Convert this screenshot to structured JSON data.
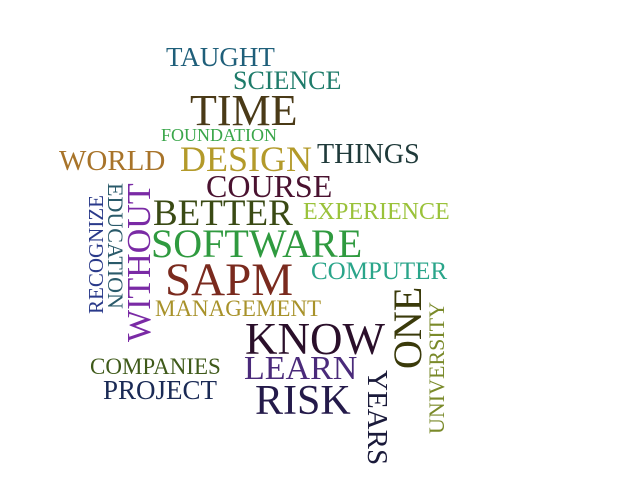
{
  "words": [
    {
      "text": "TAUGHT",
      "color": "#1f5f7a"
    },
    {
      "text": "SCIENCE",
      "color": "#1e7b6a"
    },
    {
      "text": "TIME",
      "color": "#4a3a17"
    },
    {
      "text": "FOUNDATION",
      "color": "#3aa64a"
    },
    {
      "text": "WORLD",
      "color": "#a8742a"
    },
    {
      "text": "DESIGN",
      "color": "#b39a2a"
    },
    {
      "text": "THINGS",
      "color": "#1f3a3a"
    },
    {
      "text": "COURSE",
      "color": "#4a1230"
    },
    {
      "text": "BETTER",
      "color": "#3a4a14"
    },
    {
      "text": "EXPERIENCE",
      "color": "#9ac23a"
    },
    {
      "text": "SOFTWARE",
      "color": "#2f9a3f"
    },
    {
      "text": "SAPM",
      "color": "#7a2a1e"
    },
    {
      "text": "COMPUTER",
      "color": "#2aa58a"
    },
    {
      "text": "MANAGEMENT",
      "color": "#a8922a"
    },
    {
      "text": "KNOW",
      "color": "#2a0f2a"
    },
    {
      "text": "LEARN",
      "color": "#4a2a7a"
    },
    {
      "text": "COMPANIES",
      "color": "#3f5a1a"
    },
    {
      "text": "PROJECT",
      "color": "#1a2a55"
    },
    {
      "text": "RISK",
      "color": "#241a4a"
    },
    {
      "text": "RECOGNIZE",
      "color": "#2a3a8a"
    },
    {
      "text": "EDUCATION",
      "color": "#2a5a6a"
    },
    {
      "text": "WITHOUT",
      "color": "#7a2aa5"
    },
    {
      "text": "ONE",
      "color": "#3a3a0a"
    },
    {
      "text": "UNIVERSITY",
      "color": "#7a8a2a"
    },
    {
      "text": "YEARS",
      "color": "#1a1a3a"
    }
  ]
}
